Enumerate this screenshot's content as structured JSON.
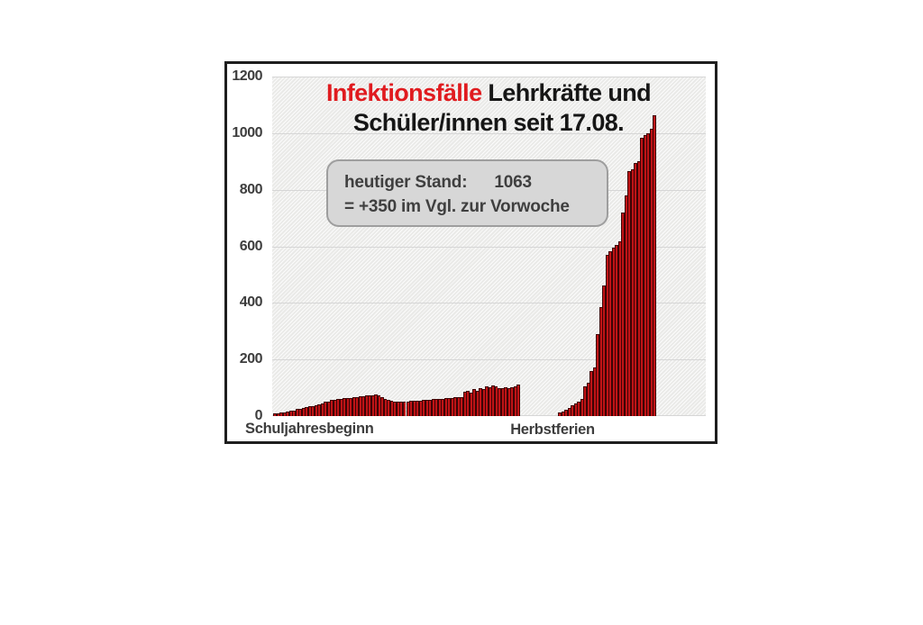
{
  "page": {
    "background": "#ffffff"
  },
  "figure": {
    "title": {
      "highlight": "Infektionsfälle",
      "line1_rest": " Lehrkräfte und",
      "line2": "Schüler/innen seit 17.08."
    },
    "annotation": {
      "line1_label": "heutiger  Stand:",
      "line1_value": "1063",
      "line2": "=  +350 im Vgl. zur Vorwoche"
    }
  },
  "chart_data": {
    "type": "bar",
    "title": "Infektionsfälle Lehrkräfte und Schüler/innen seit 17.08.",
    "xlabel": "",
    "ylabel": "",
    "ylim": [
      0,
      1200
    ],
    "yticks": [
      0,
      200,
      400,
      600,
      800,
      1000,
      1200
    ],
    "grid": "horizontal",
    "legend": "none",
    "bar_color": "#bf1316",
    "x_axis_annotations": [
      {
        "label": "Schuljahresbeginn",
        "position": "start-of-axis"
      },
      {
        "label": "Herbstferien",
        "position": "at-gap"
      }
    ],
    "annotation_box": {
      "line1": "heutiger Stand: 1063",
      "line2": "= +350 im Vgl. zur Vorwoche"
    },
    "latest_value": 1063,
    "weekly_increase": 350,
    "note": "cumulative daily cases; zeros represent the Herbstferien gap with no bars",
    "values": [
      8,
      10,
      12,
      14,
      16,
      18,
      20,
      24,
      27,
      30,
      32,
      34,
      36,
      38,
      42,
      46,
      50,
      52,
      56,
      58,
      60,
      62,
      63,
      64,
      65,
      66,
      68,
      70,
      71,
      72,
      73,
      74,
      75,
      73,
      68,
      62,
      56,
      53,
      51,
      50,
      50,
      51,
      52,
      53,
      54,
      54,
      55,
      56,
      57,
      58,
      59,
      60,
      61,
      62,
      63,
      64,
      65,
      66,
      67,
      68,
      86,
      88,
      83,
      94,
      90,
      99,
      96,
      105,
      101,
      108,
      104,
      100,
      98,
      103,
      100,
      102,
      105,
      112,
      0,
      0,
      0,
      0,
      0,
      0,
      0,
      0,
      0,
      0,
      0,
      0,
      12,
      15,
      22,
      28,
      38,
      45,
      52,
      60,
      105,
      118,
      158,
      172,
      290,
      385,
      462,
      570,
      582,
      595,
      605,
      618,
      720,
      780,
      865,
      872,
      893,
      900,
      985,
      993,
      1000,
      1015,
      1063
    ]
  },
  "colors": {
    "bar_fill": "#bf1316",
    "bar_edge": "#3d0405",
    "grid": "#d6d6d6",
    "plot_bg": "#f0f0ee",
    "annotation_bg": "#d7d7d7",
    "annotation_border": "#9e9e9e",
    "axis_text": "#3d3d3d",
    "title_red": "#e01b1f",
    "title_black": "#161616",
    "figure_border": "#1e1e1e"
  }
}
